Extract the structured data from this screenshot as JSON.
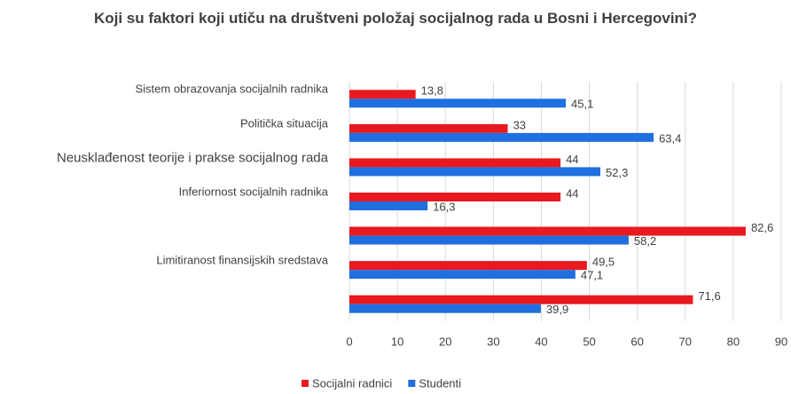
{
  "chart_data": {
    "type": "hbar",
    "title": "Koji su faktori koji utiču na društveni položaj socijalnog rada u Bosni i Hercegovini?",
    "categories": [
      "Sistem obrazovanja socijalnih radnika",
      "Politička situacija",
      "Neusklađenost teorije i prakse socijalnog rada",
      "Inferiornost socijalnih radnika",
      null,
      "Limitiranost finansijskih sredstava",
      null
    ],
    "series": [
      {
        "name": "Socijalni radnici",
        "color": "#e8191f",
        "values": [
          13.8,
          33,
          44,
          44,
          82.6,
          49.5,
          71.6
        ],
        "value_labels": [
          "13,8",
          "33",
          "44",
          "44",
          "82,6",
          "49,5",
          "71,6"
        ]
      },
      {
        "name": "Studenti",
        "color": "#1f6fe0",
        "values": [
          45.1,
          63.4,
          52.3,
          16.3,
          58.2,
          47.1,
          39.9
        ],
        "value_labels": [
          "45,1",
          "63,4",
          "52,3",
          "16,3",
          "58,2",
          "47,1",
          "39,9"
        ]
      }
    ],
    "xlim": [
      0,
      90
    ],
    "xticks": [
      0,
      10,
      20,
      30,
      40,
      50,
      60,
      70,
      80,
      90
    ],
    "grid": true,
    "legend": "bottom"
  }
}
